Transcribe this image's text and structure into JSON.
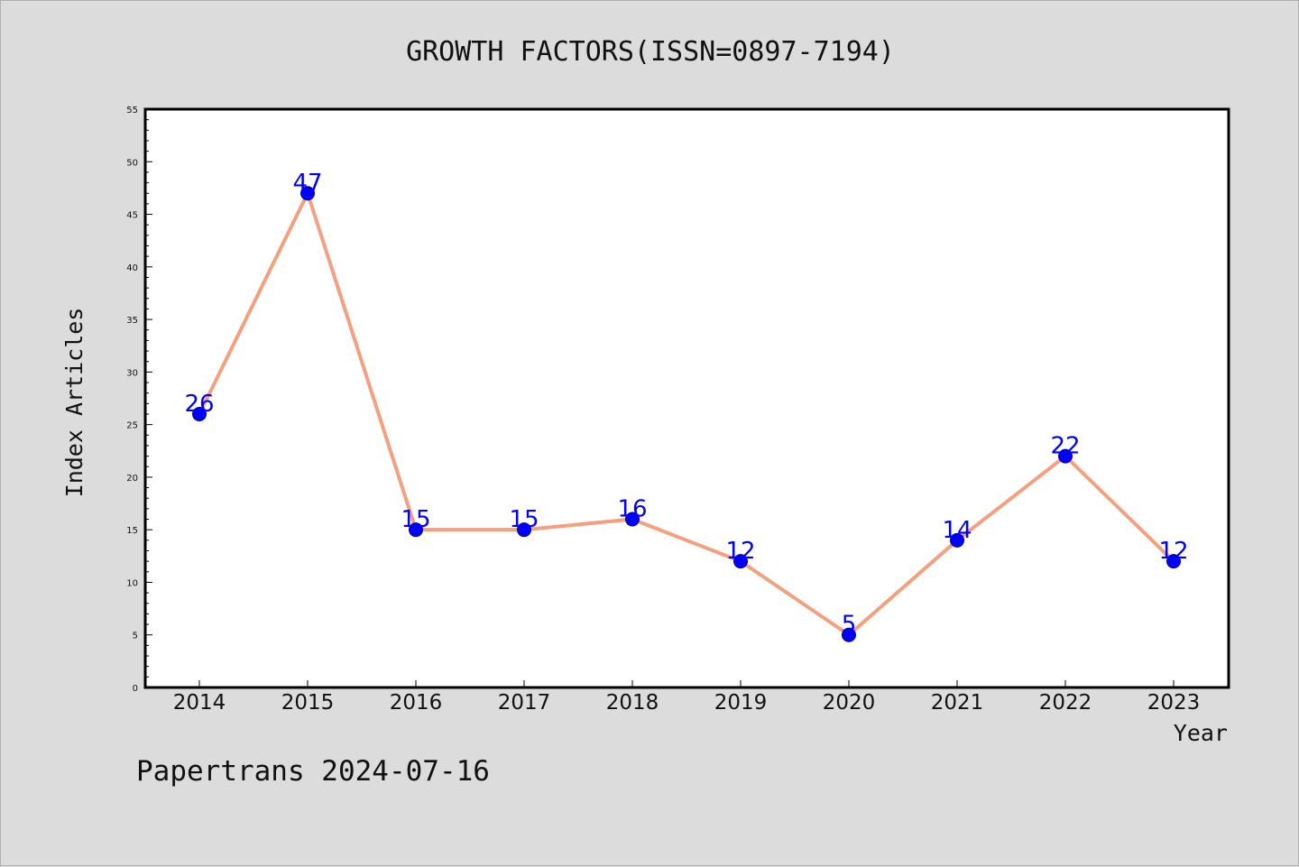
{
  "chart_data": {
    "type": "line",
    "title": "GROWTH FACTORS(ISSN=0897-7194)",
    "xlabel": "Year",
    "ylabel": "Index Articles",
    "categories": [
      "2014",
      "2015",
      "2016",
      "2017",
      "2018",
      "2019",
      "2020",
      "2021",
      "2022",
      "2023"
    ],
    "series": [
      {
        "values": [
          26,
          47,
          15,
          15,
          16,
          12,
          5,
          14,
          22,
          12
        ]
      }
    ],
    "ylim": [
      0,
      55
    ],
    "yticks": [
      0,
      5,
      10,
      15,
      20,
      25,
      30,
      35,
      40,
      45,
      50,
      55
    ],
    "data_labels": true,
    "grid": false,
    "colors": {
      "line": "#f4a07f",
      "marker": "#0000ff",
      "label": "#0000ff",
      "background": "#dcdcdc",
      "plot_background": "#ffffff"
    }
  },
  "footer": "Papertrans 2024-07-16"
}
